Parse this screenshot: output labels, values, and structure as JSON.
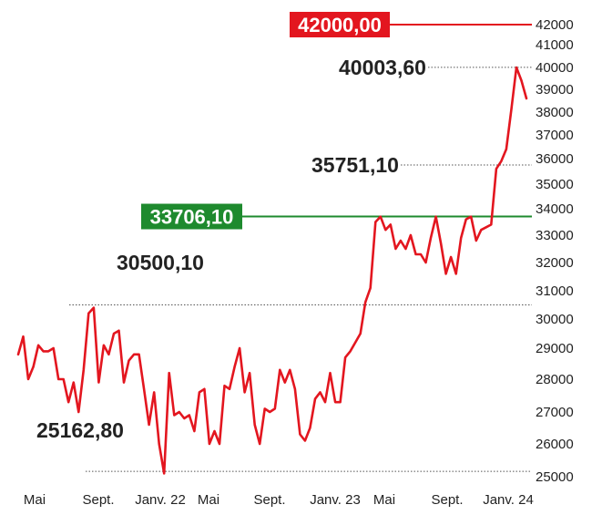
{
  "chart_data": {
    "type": "line",
    "title": "",
    "xlabel": "",
    "ylabel": "",
    "ylim": [
      25000,
      42500
    ],
    "y_scale": "nonlinear (y-axis ticks are not evenly spaced)",
    "y_ticks": [
      25000,
      26000,
      27000,
      28000,
      29000,
      30000,
      31000,
      32000,
      33000,
      34000,
      35000,
      36000,
      37000,
      38000,
      39000,
      40000,
      41000,
      42000
    ],
    "x_ticks": [
      "Mai",
      "Sept.",
      "Janv. 22",
      "Mai",
      "Sept.",
      "Janv. 23",
      "Mai",
      "Sept.",
      "Janv. 24"
    ],
    "series_color": "#e3161f",
    "grid": false,
    "series": [
      {
        "values": [
          28800,
          29400,
          28000,
          28400,
          29100,
          28900,
          28900,
          29000,
          28000,
          28000,
          27300,
          27900,
          27000,
          28300,
          30200,
          30400,
          27900,
          29100,
          28800,
          29500,
          29600,
          27900,
          28600,
          28800,
          28800,
          27700,
          26600,
          27600,
          26000,
          25100,
          28200,
          26900,
          27000,
          26800,
          26900,
          26400,
          27600,
          27700,
          26000,
          26400,
          26000,
          27800,
          27700,
          28400,
          29000,
          27600,
          28200,
          26600,
          26000,
          27100,
          27000,
          27100,
          28300,
          27900,
          28300,
          27700,
          26300,
          26100,
          26500,
          27400,
          27600,
          27300,
          28200,
          27300,
          27300,
          28700,
          28900,
          29200,
          29500,
          30600,
          31100,
          33500,
          33700,
          33200,
          33400,
          32500,
          32800,
          32500,
          33000,
          32300,
          32300,
          32000,
          32900,
          33700,
          32700,
          31600,
          32200,
          31600,
          32900,
          33600,
          33700,
          32800,
          33200,
          33300,
          33400,
          35600,
          35900,
          36400,
          38100,
          40000,
          39400,
          38600
        ]
      }
    ],
    "reference_lines": [
      {
        "label": "42000,00",
        "value": 42000,
        "style": "boxed",
        "color": "#e3161f"
      },
      {
        "label": "40003,60",
        "value": 40003.6,
        "style": "dotted"
      },
      {
        "label": "35751,10",
        "value": 35751.1,
        "style": "dotted"
      },
      {
        "label": "33706,10",
        "value": 33706.1,
        "style": "boxed",
        "color": "#1e8a2e"
      },
      {
        "label": "30500,10",
        "value": 30500.1,
        "style": "dotted"
      },
      {
        "label": "25162,80",
        "value": 25162.8,
        "style": "dotted"
      }
    ]
  }
}
